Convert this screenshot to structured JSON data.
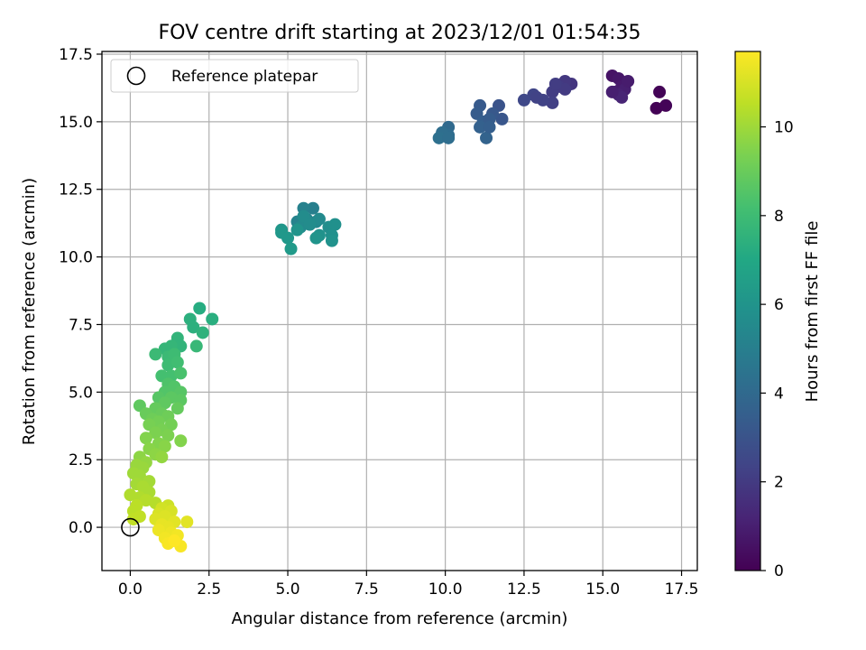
{
  "chart_data": {
    "type": "scatter",
    "title": "FOV centre drift starting at 2023/12/01 01:54:35",
    "xlabel": "Angular distance from reference (arcmin)",
    "ylabel": "Rotation from reference (arcmin)",
    "xlim": [
      -0.9,
      18.0
    ],
    "ylim": [
      -1.6,
      17.6
    ],
    "xticks": [
      "0.0",
      "2.5",
      "5.0",
      "7.5",
      "10.0",
      "12.5",
      "15.0",
      "17.5"
    ],
    "xtick_values": [
      0,
      2.5,
      5,
      7.5,
      10,
      12.5,
      15,
      17.5
    ],
    "yticks": [
      "0.0",
      "2.5",
      "5.0",
      "7.5",
      "10.0",
      "12.5",
      "15.0",
      "17.5"
    ],
    "ytick_values": [
      0,
      2.5,
      5,
      7.5,
      10,
      12.5,
      15,
      17.5
    ],
    "grid": true,
    "legend": {
      "entries": [
        "Reference platepar"
      ],
      "placement": "upper-left"
    },
    "reference_point": {
      "x": 0,
      "y": 0,
      "label": "Reference platepar"
    },
    "colorbar": {
      "label": "Hours from first FF file",
      "colormap": "viridis",
      "range": [
        0,
        11.7
      ],
      "ticks": [
        "0",
        "2",
        "4",
        "6",
        "8",
        "10"
      ],
      "tick_values": [
        0,
        2,
        4,
        6,
        8,
        10
      ]
    },
    "points": [
      {
        "x": 16.8,
        "y": 16.1,
        "c": 0.1
      },
      {
        "x": 16.7,
        "y": 15.5,
        "c": 0.05
      },
      {
        "x": 17.0,
        "y": 15.6,
        "c": 0.1
      },
      {
        "x": 15.3,
        "y": 16.7,
        "c": 0.6
      },
      {
        "x": 15.5,
        "y": 16.6,
        "c": 0.7
      },
      {
        "x": 15.6,
        "y": 16.3,
        "c": 0.8
      },
      {
        "x": 15.4,
        "y": 16.1,
        "c": 0.9
      },
      {
        "x": 15.7,
        "y": 16.2,
        "c": 1.0
      },
      {
        "x": 15.5,
        "y": 16.0,
        "c": 1.1
      },
      {
        "x": 15.8,
        "y": 16.5,
        "c": 0.9
      },
      {
        "x": 15.6,
        "y": 15.9,
        "c": 1.2
      },
      {
        "x": 15.3,
        "y": 16.1,
        "c": 1.0
      },
      {
        "x": 14.0,
        "y": 16.4,
        "c": 1.8
      },
      {
        "x": 13.8,
        "y": 16.5,
        "c": 1.9
      },
      {
        "x": 13.6,
        "y": 16.3,
        "c": 2.0
      },
      {
        "x": 13.4,
        "y": 16.1,
        "c": 2.1
      },
      {
        "x": 13.4,
        "y": 15.7,
        "c": 2.2
      },
      {
        "x": 13.1,
        "y": 15.8,
        "c": 2.3
      },
      {
        "x": 12.8,
        "y": 16.0,
        "c": 2.4
      },
      {
        "x": 12.9,
        "y": 15.9,
        "c": 2.3
      },
      {
        "x": 12.5,
        "y": 15.8,
        "c": 2.5
      },
      {
        "x": 13.8,
        "y": 16.2,
        "c": 2.0
      },
      {
        "x": 13.5,
        "y": 16.4,
        "c": 2.1
      },
      {
        "x": 11.7,
        "y": 15.6,
        "c": 3.0
      },
      {
        "x": 11.8,
        "y": 15.1,
        "c": 3.1
      },
      {
        "x": 11.5,
        "y": 15.3,
        "c": 3.2
      },
      {
        "x": 11.1,
        "y": 15.6,
        "c": 3.3
      },
      {
        "x": 11.0,
        "y": 15.3,
        "c": 3.4
      },
      {
        "x": 11.2,
        "y": 15.0,
        "c": 3.5
      },
      {
        "x": 11.4,
        "y": 15.1,
        "c": 3.4
      },
      {
        "x": 11.1,
        "y": 14.8,
        "c": 3.6
      },
      {
        "x": 11.3,
        "y": 14.4,
        "c": 3.7
      },
      {
        "x": 11.4,
        "y": 14.8,
        "c": 3.5
      },
      {
        "x": 10.1,
        "y": 14.8,
        "c": 4.0
      },
      {
        "x": 10.1,
        "y": 14.5,
        "c": 4.1
      },
      {
        "x": 9.9,
        "y": 14.6,
        "c": 4.2
      },
      {
        "x": 9.8,
        "y": 14.4,
        "c": 4.3
      },
      {
        "x": 10.1,
        "y": 14.4,
        "c": 4.2
      },
      {
        "x": 5.8,
        "y": 11.8,
        "c": 5.0
      },
      {
        "x": 5.5,
        "y": 11.8,
        "c": 5.1
      },
      {
        "x": 5.3,
        "y": 11.3,
        "c": 5.2
      },
      {
        "x": 5.6,
        "y": 11.4,
        "c": 5.3
      },
      {
        "x": 5.9,
        "y": 11.3,
        "c": 5.4
      },
      {
        "x": 6.0,
        "y": 11.4,
        "c": 5.5
      },
      {
        "x": 5.4,
        "y": 11.1,
        "c": 5.5
      },
      {
        "x": 5.5,
        "y": 11.5,
        "c": 5.6
      },
      {
        "x": 5.7,
        "y": 11.2,
        "c": 5.6
      },
      {
        "x": 6.3,
        "y": 11.1,
        "c": 5.7
      },
      {
        "x": 6.5,
        "y": 11.2,
        "c": 5.8
      },
      {
        "x": 6.4,
        "y": 10.8,
        "c": 5.8
      },
      {
        "x": 6.4,
        "y": 10.6,
        "c": 5.9
      },
      {
        "x": 6.0,
        "y": 10.8,
        "c": 5.9
      },
      {
        "x": 5.9,
        "y": 10.7,
        "c": 6.0
      },
      {
        "x": 5.3,
        "y": 11.0,
        "c": 6.0
      },
      {
        "x": 4.8,
        "y": 11.0,
        "c": 6.1
      },
      {
        "x": 4.8,
        "y": 10.9,
        "c": 6.2
      },
      {
        "x": 5.0,
        "y": 10.7,
        "c": 6.2
      },
      {
        "x": 5.1,
        "y": 10.3,
        "c": 6.3
      },
      {
        "x": 2.2,
        "y": 8.1,
        "c": 7.2
      },
      {
        "x": 2.6,
        "y": 7.7,
        "c": 7.3
      },
      {
        "x": 1.9,
        "y": 7.7,
        "c": 7.4
      },
      {
        "x": 2.0,
        "y": 7.4,
        "c": 7.4
      },
      {
        "x": 2.3,
        "y": 7.2,
        "c": 7.5
      },
      {
        "x": 1.5,
        "y": 7.0,
        "c": 7.6
      },
      {
        "x": 1.6,
        "y": 6.7,
        "c": 7.6
      },
      {
        "x": 1.1,
        "y": 6.6,
        "c": 7.7
      },
      {
        "x": 1.3,
        "y": 6.7,
        "c": 7.7
      },
      {
        "x": 2.1,
        "y": 6.7,
        "c": 7.8
      },
      {
        "x": 0.8,
        "y": 6.4,
        "c": 7.9
      },
      {
        "x": 1.2,
        "y": 6.3,
        "c": 7.9
      },
      {
        "x": 1.4,
        "y": 6.4,
        "c": 8.0
      },
      {
        "x": 1.2,
        "y": 6.0,
        "c": 8.0
      },
      {
        "x": 1.5,
        "y": 6.1,
        "c": 8.1
      },
      {
        "x": 1.0,
        "y": 5.6,
        "c": 8.2
      },
      {
        "x": 1.3,
        "y": 5.6,
        "c": 8.2
      },
      {
        "x": 1.6,
        "y": 5.7,
        "c": 8.3
      },
      {
        "x": 1.2,
        "y": 5.3,
        "c": 8.4
      },
      {
        "x": 1.4,
        "y": 5.2,
        "c": 8.5
      },
      {
        "x": 1.1,
        "y": 5.0,
        "c": 8.5
      },
      {
        "x": 1.6,
        "y": 5.0,
        "c": 8.6
      },
      {
        "x": 0.9,
        "y": 4.8,
        "c": 8.6
      },
      {
        "x": 1.3,
        "y": 4.8,
        "c": 8.7
      },
      {
        "x": 1.6,
        "y": 4.7,
        "c": 8.7
      },
      {
        "x": 1.1,
        "y": 4.6,
        "c": 8.8
      },
      {
        "x": 0.3,
        "y": 4.5,
        "c": 8.8
      },
      {
        "x": 1.5,
        "y": 4.4,
        "c": 8.9
      },
      {
        "x": 0.8,
        "y": 4.4,
        "c": 8.9
      },
      {
        "x": 0.5,
        "y": 4.2,
        "c": 9.0
      },
      {
        "x": 1.0,
        "y": 4.2,
        "c": 9.0
      },
      {
        "x": 1.2,
        "y": 4.1,
        "c": 9.1
      },
      {
        "x": 0.7,
        "y": 4.0,
        "c": 9.1
      },
      {
        "x": 0.9,
        "y": 3.9,
        "c": 9.2
      },
      {
        "x": 1.3,
        "y": 3.8,
        "c": 9.2
      },
      {
        "x": 0.6,
        "y": 3.8,
        "c": 9.3
      },
      {
        "x": 1.0,
        "y": 3.6,
        "c": 9.3
      },
      {
        "x": 0.8,
        "y": 3.5,
        "c": 9.4
      },
      {
        "x": 1.2,
        "y": 3.4,
        "c": 9.4
      },
      {
        "x": 0.5,
        "y": 3.3,
        "c": 9.5
      },
      {
        "x": 1.6,
        "y": 3.2,
        "c": 9.5
      },
      {
        "x": 0.9,
        "y": 3.1,
        "c": 9.5
      },
      {
        "x": 1.1,
        "y": 3.0,
        "c": 9.6
      },
      {
        "x": 0.6,
        "y": 2.9,
        "c": 9.6
      },
      {
        "x": 0.8,
        "y": 2.7,
        "c": 9.7
      },
      {
        "x": 0.3,
        "y": 2.6,
        "c": 9.7
      },
      {
        "x": 1.0,
        "y": 2.6,
        "c": 9.8
      },
      {
        "x": 0.5,
        "y": 2.4,
        "c": 9.8
      },
      {
        "x": 0.2,
        "y": 2.3,
        "c": 9.9
      },
      {
        "x": 0.4,
        "y": 2.2,
        "c": 9.9
      },
      {
        "x": 0.1,
        "y": 2.0,
        "c": 10.0
      },
      {
        "x": 0.3,
        "y": 1.9,
        "c": 10.0
      },
      {
        "x": 0.6,
        "y": 1.7,
        "c": 10.1
      },
      {
        "x": 0.2,
        "y": 1.6,
        "c": 10.1
      },
      {
        "x": 0.4,
        "y": 1.5,
        "c": 10.2
      },
      {
        "x": 0.6,
        "y": 1.3,
        "c": 10.2
      },
      {
        "x": 0.0,
        "y": 1.2,
        "c": 10.3
      },
      {
        "x": 0.3,
        "y": 1.1,
        "c": 10.3
      },
      {
        "x": 0.5,
        "y": 1.0,
        "c": 10.4
      },
      {
        "x": 0.8,
        "y": 0.9,
        "c": 10.4
      },
      {
        "x": 0.2,
        "y": 0.8,
        "c": 10.5
      },
      {
        "x": 0.1,
        "y": 0.6,
        "c": 10.5
      },
      {
        "x": 0.3,
        "y": 0.4,
        "c": 10.6
      },
      {
        "x": 0.1,
        "y": 0.3,
        "c": 10.6
      },
      {
        "x": 1.2,
        "y": 0.8,
        "c": 10.8
      },
      {
        "x": 1.0,
        "y": 0.7,
        "c": 10.9
      },
      {
        "x": 1.3,
        "y": 0.6,
        "c": 11.0
      },
      {
        "x": 0.9,
        "y": 0.5,
        "c": 11.0
      },
      {
        "x": 1.1,
        "y": 0.4,
        "c": 11.1
      },
      {
        "x": 0.8,
        "y": 0.3,
        "c": 11.1
      },
      {
        "x": 1.4,
        "y": 0.2,
        "c": 11.2
      },
      {
        "x": 1.8,
        "y": 0.2,
        "c": 11.2
      },
      {
        "x": 1.0,
        "y": 0.1,
        "c": 11.3
      },
      {
        "x": 1.2,
        "y": 0.0,
        "c": 11.3
      },
      {
        "x": 0.9,
        "y": -0.1,
        "c": 11.4
      },
      {
        "x": 1.3,
        "y": -0.2,
        "c": 11.4
      },
      {
        "x": 1.5,
        "y": -0.3,
        "c": 11.5
      },
      {
        "x": 1.1,
        "y": -0.4,
        "c": 11.5
      },
      {
        "x": 1.2,
        "y": -0.6,
        "c": 11.6
      },
      {
        "x": 1.6,
        "y": -0.7,
        "c": 11.6
      },
      {
        "x": 1.4,
        "y": -0.5,
        "c": 11.7
      }
    ]
  }
}
